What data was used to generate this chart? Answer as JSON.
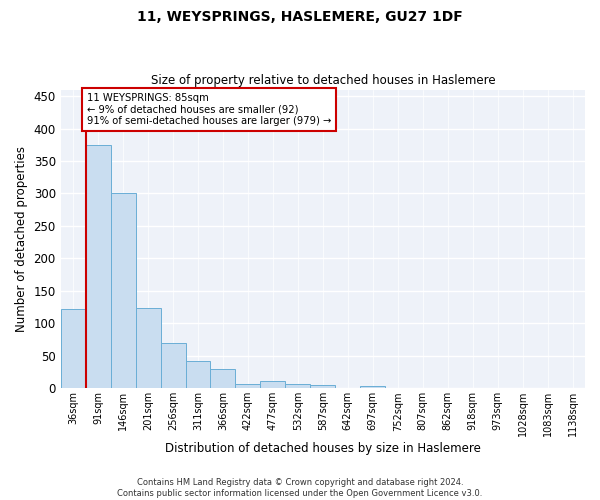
{
  "title": "11, WEYSPRINGS, HASLEMERE, GU27 1DF",
  "subtitle": "Size of property relative to detached houses in Haslemere",
  "xlabel": "Distribution of detached houses by size in Haslemere",
  "ylabel": "Number of detached properties",
  "bar_color": "#c9ddf0",
  "bar_edge_color": "#6aaed6",
  "categories": [
    "36sqm",
    "91sqm",
    "146sqm",
    "201sqm",
    "256sqm",
    "311sqm",
    "366sqm",
    "422sqm",
    "477sqm",
    "532sqm",
    "587sqm",
    "642sqm",
    "697sqm",
    "752sqm",
    "807sqm",
    "862sqm",
    "918sqm",
    "973sqm",
    "1028sqm",
    "1083sqm",
    "1138sqm"
  ],
  "values": [
    122,
    375,
    300,
    123,
    70,
    42,
    29,
    7,
    11,
    7,
    5,
    0,
    3,
    0,
    0,
    0,
    1,
    0,
    0,
    1,
    0
  ],
  "ylim": [
    0,
    460
  ],
  "yticks": [
    0,
    50,
    100,
    150,
    200,
    250,
    300,
    350,
    400,
    450
  ],
  "vline_color": "#cc0000",
  "annotation_box_edge": "#cc0000",
  "bg_color": "#eef2f9",
  "grid_color": "#ffffff",
  "marker_label_line1": "11 WEYSPRINGS: 85sqm",
  "marker_label_line2": "← 9% of detached houses are smaller (92)",
  "marker_label_line3": "91% of semi-detached houses are larger (979) →",
  "footer_line1": "Contains HM Land Registry data © Crown copyright and database right 2024.",
  "footer_line2": "Contains public sector information licensed under the Open Government Licence v3.0."
}
